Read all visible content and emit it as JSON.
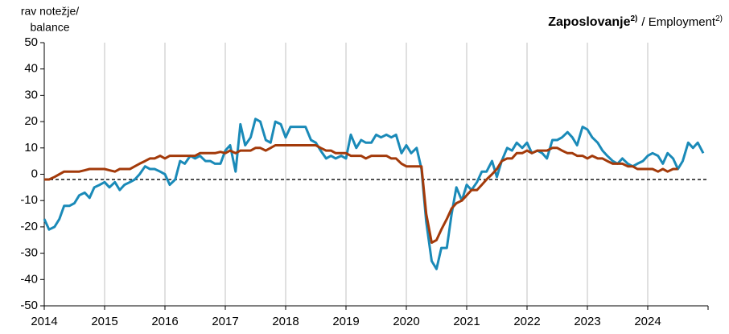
{
  "chart_data": {
    "type": "line",
    "title": "Zaposlovanje",
    "title_note": "2)",
    "title_en": "/ Employment",
    "title_en_note": "2)",
    "ylabel": [
      "rav notežje/",
      "balance"
    ],
    "xlim": [
      2014,
      2025
    ],
    "xticks": [
      2014,
      2015,
      2016,
      2017,
      2018,
      2019,
      2020,
      2021,
      2022,
      2023,
      2024
    ],
    "ylim": [
      -50,
      50
    ],
    "yticks": [
      -50,
      -40,
      -30,
      -20,
      -10,
      0,
      10,
      20,
      30,
      40,
      50
    ],
    "grid": true,
    "reference_line": -2,
    "x": [
      2014,
      2014.08,
      2014.17,
      2014.25,
      2014.33,
      2014.42,
      2014.5,
      2014.58,
      2014.67,
      2014.75,
      2014.83,
      2014.92,
      2015,
      2015.08,
      2015.17,
      2015.25,
      2015.33,
      2015.42,
      2015.5,
      2015.58,
      2015.67,
      2015.75,
      2015.83,
      2015.92,
      2016,
      2016.08,
      2016.17,
      2016.25,
      2016.33,
      2016.42,
      2016.5,
      2016.58,
      2016.67,
      2016.75,
      2016.83,
      2016.92,
      2017,
      2017.08,
      2017.17,
      2017.25,
      2017.33,
      2017.42,
      2017.5,
      2017.58,
      2017.67,
      2017.75,
      2017.83,
      2017.92,
      2018,
      2018.08,
      2018.17,
      2018.25,
      2018.33,
      2018.42,
      2018.5,
      2018.58,
      2018.67,
      2018.75,
      2018.83,
      2018.92,
      2019,
      2019.08,
      2019.17,
      2019.25,
      2019.33,
      2019.42,
      2019.5,
      2019.58,
      2019.67,
      2019.75,
      2019.83,
      2019.92,
      2020,
      2020.08,
      2020.17,
      2020.25,
      2020.33,
      2020.42,
      2020.5,
      2020.58,
      2020.67,
      2020.75,
      2020.83,
      2020.92,
      2021,
      2021.08,
      2021.17,
      2021.25,
      2021.33,
      2021.42,
      2021.5,
      2021.58,
      2021.67,
      2021.75,
      2021.83,
      2021.92,
      2022,
      2022.08,
      2022.17,
      2022.25,
      2022.33,
      2022.42,
      2022.5,
      2022.58,
      2022.67,
      2022.75,
      2022.83,
      2022.92,
      2023,
      2023.08,
      2023.17,
      2023.25,
      2023.33,
      2023.42,
      2023.5,
      2023.58,
      2023.67,
      2023.75,
      2023.83,
      2023.92,
      2024,
      2024.08,
      2024.17,
      2024.25,
      2024.33,
      2024.42,
      2024.5,
      2024.58,
      2024.67,
      2024.75,
      2024.83,
      2024.92
    ],
    "series": [
      {
        "color": "#1a8ab8",
        "values": [
          -17,
          -21,
          -20,
          -17,
          -12,
          -12,
          -11,
          -8,
          -7,
          -9,
          -5,
          -4,
          -3,
          -5,
          -3,
          -6,
          -4,
          -3,
          -2,
          0,
          3,
          2,
          2,
          1,
          0,
          -4,
          -2,
          5,
          4,
          7,
          6,
          7,
          5,
          5,
          4,
          4,
          9,
          11,
          1,
          19,
          11,
          14,
          21,
          20,
          13,
          12,
          20,
          19,
          14,
          18,
          18,
          18,
          18,
          13,
          12,
          9,
          6,
          7,
          6,
          7,
          6,
          15,
          10,
          13,
          12,
          12,
          15,
          14,
          15,
          14,
          15,
          8,
          11,
          8,
          10,
          2,
          -18,
          -33,
          -36,
          -28,
          -28,
          -15,
          -5,
          -10,
          -4,
          -6,
          -3,
          1,
          1,
          5,
          -1,
          5,
          10,
          9,
          12,
          10,
          12,
          8,
          9,
          8,
          6,
          13,
          13,
          14,
          16,
          14,
          11,
          18,
          17,
          14,
          12,
          9,
          7,
          5,
          4,
          6,
          4,
          3,
          4,
          5,
          7,
          8,
          7,
          4,
          8,
          6,
          2,
          5,
          12,
          10,
          12,
          8
        ]
      },
      {
        "color": "#a33a0a",
        "values": [
          -2,
          -2,
          -1,
          0,
          1,
          1,
          1,
          1,
          1.5,
          2,
          2,
          2,
          2,
          1.5,
          1,
          2,
          2,
          2,
          3,
          4,
          5,
          6,
          6,
          7,
          6,
          7,
          7,
          7,
          7,
          7,
          7,
          8,
          8,
          8,
          8,
          8.5,
          8,
          9,
          8,
          9,
          9,
          9,
          10,
          10,
          9,
          10,
          11,
          11,
          11,
          11,
          11,
          11,
          11,
          11,
          11,
          10,
          9,
          9,
          8,
          8,
          8,
          7,
          7,
          7,
          6,
          7,
          7,
          7,
          7,
          6,
          6,
          4,
          3,
          3,
          3,
          3,
          -15,
          -26,
          -25,
          -21,
          -17,
          -13,
          -11,
          -10,
          -8,
          -6,
          -6,
          -4,
          -2,
          0,
          2,
          5,
          6,
          6,
          8,
          8,
          9,
          8,
          9,
          9,
          9,
          10,
          10,
          9,
          8,
          8,
          7,
          7,
          6,
          7,
          6,
          6,
          5,
          4,
          4,
          4,
          3,
          3,
          2,
          2,
          2,
          2,
          1,
          2,
          1,
          2,
          2,
          null,
          null,
          null,
          null,
          null
        ]
      }
    ]
  }
}
